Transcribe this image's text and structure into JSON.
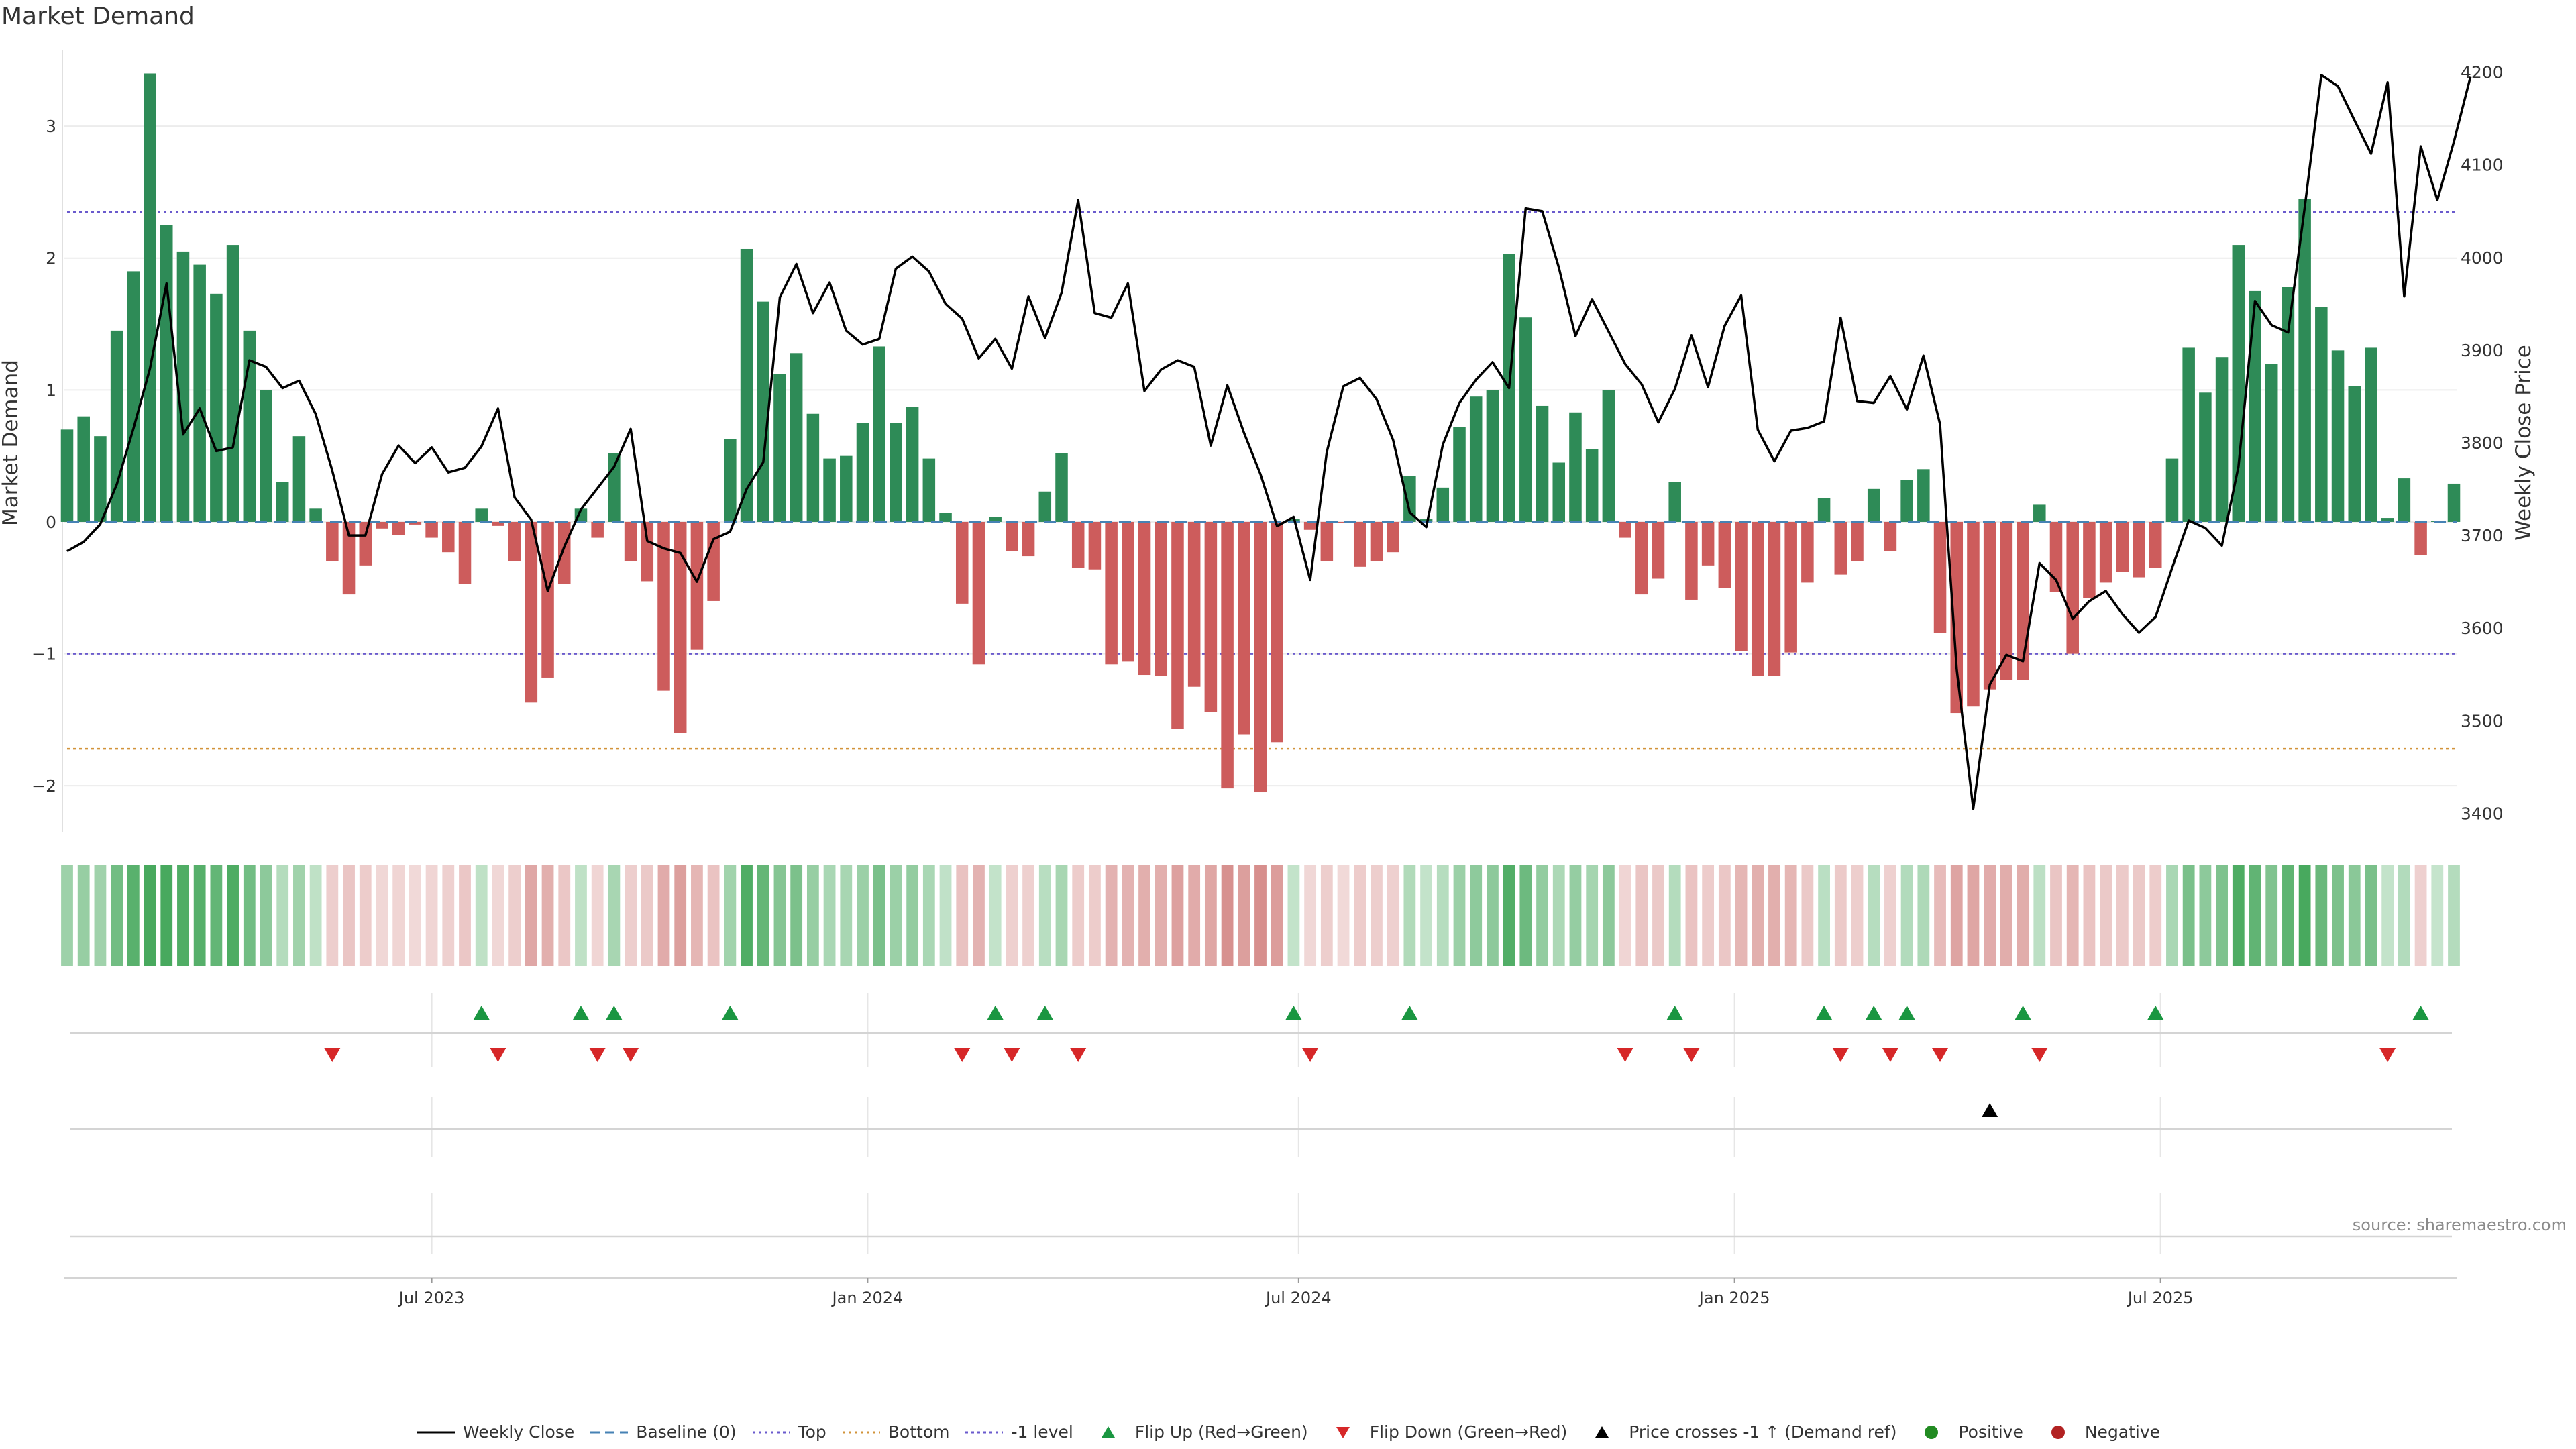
{
  "title": "Market Demand",
  "source": "source: sharemaestro.com",
  "colors": {
    "positive": "#2e8b57",
    "negative": "#cd5c5c",
    "price": "#000000",
    "baseline": "#4682b4",
    "top": "#6a5acd",
    "bottom": "#d2933a",
    "minus1": "#6a5acd",
    "flip_up": "#1a9641",
    "flip_down": "#d62728",
    "cross": "#000000",
    "positive_dot": "#228b22",
    "negative_dot": "#b22222"
  },
  "chart_data": {
    "type": "bar+line",
    "title": "Market Demand",
    "ylabel_left": "Market Demand",
    "ylabel_right": "Weekly Close Price",
    "ylim_left": [
      -2.35,
      3.55
    ],
    "ylim_right": [
      3380,
      4220
    ],
    "left_ticks": [
      "3",
      "2",
      "1",
      "0",
      "−1",
      "−2"
    ],
    "left_tick_values": [
      3,
      2,
      1,
      0,
      -1,
      -2
    ],
    "right_ticks": [
      "4200",
      "4100",
      "4000",
      "3900",
      "3800",
      "3700",
      "3600",
      "3500",
      "3400"
    ],
    "right_tick_values": [
      4200,
      4100,
      4000,
      3900,
      3800,
      3700,
      3600,
      3500,
      3400
    ],
    "x_ticks": [
      "Jul 2023",
      "Jan 2024",
      "Jul 2024",
      "Jan 2025",
      "Jul 2025"
    ],
    "x_tick_index": [
      22,
      48.3,
      74.3,
      100.6,
      126.3
    ],
    "reference_lines": {
      "top": 2.35,
      "bottom": -1.72,
      "minus1": -1.0,
      "baseline": 0
    },
    "demand": [
      0.7,
      0.8,
      0.65,
      1.45,
      1.9,
      3.4,
      2.25,
      2.05,
      1.95,
      1.73,
      2.1,
      1.45,
      1.0,
      0.3,
      0.65,
      0.1,
      -0.3,
      -0.55,
      -0.33,
      -0.05,
      -0.1,
      -0.02,
      -0.12,
      -0.23,
      -0.47,
      0.1,
      -0.03,
      -0.3,
      -1.37,
      -1.18,
      -0.47,
      0.1,
      -0.12,
      0.52,
      -0.3,
      -0.45,
      -1.28,
      -1.6,
      -0.97,
      -0.6,
      0.63,
      2.07,
      1.67,
      1.12,
      1.28,
      0.82,
      0.48,
      0.5,
      0.75,
      1.33,
      0.75,
      0.87,
      0.48,
      0.07,
      -0.62,
      -1.08,
      0.04,
      -0.22,
      -0.26,
      0.23,
      0.52,
      -0.35,
      -0.36,
      -1.08,
      -1.06,
      -1.16,
      -1.17,
      -1.57,
      -1.25,
      -1.44,
      -2.02,
      -1.61,
      -2.05,
      -1.67,
      0.02,
      -0.06,
      -0.3,
      -0.01,
      -0.34,
      -0.3,
      -0.23,
      0.35,
      0.02,
      0.26,
      0.72,
      0.95,
      1.0,
      2.03,
      1.55,
      0.88,
      0.45,
      0.83,
      0.55,
      1.0,
      -0.12,
      -0.55,
      -0.43,
      0.3,
      -0.59,
      -0.33,
      -0.5,
      -0.98,
      -1.17,
      -1.17,
      -0.99,
      -0.46,
      0.18,
      -0.4,
      -0.3,
      0.25,
      -0.22,
      0.32,
      0.4,
      -0.84,
      -1.45,
      -1.4,
      -1.27,
      -1.2,
      -1.2,
      0.13,
      -0.53,
      -1.0,
      -0.58,
      -0.46,
      -0.38,
      -0.42,
      -0.35,
      0.48,
      1.32,
      0.98,
      1.25,
      2.1,
      1.75,
      1.2,
      1.78,
      2.45,
      1.63,
      1.3,
      1.03,
      1.32,
      0.03,
      0.33,
      -0.25,
      0.01,
      0.29
    ],
    "weekly_close": [
      3683,
      3693,
      3712,
      3755,
      3815,
      3880,
      3972,
      3809,
      3837,
      3791,
      3795,
      3889,
      3882,
      3859,
      3867,
      3831,
      3770,
      3700,
      3700,
      3766,
      3797,
      3778,
      3795,
      3768,
      3773,
      3796,
      3837,
      3741,
      3717,
      3640,
      3688,
      3728,
      3751,
      3774,
      3815,
      3694,
      3686,
      3681,
      3650,
      3696,
      3704,
      3750,
      3779,
      3957,
      3993,
      3940,
      3973,
      3921,
      3906,
      3912,
      3988,
      4001,
      3985,
      3950,
      3934,
      3891,
      3912,
      3880,
      3958,
      3913,
      3962,
      4062,
      3940,
      3935,
      3972,
      3856,
      3879,
      3889,
      3882,
      3797,
      3862,
      3811,
      3766,
      3710,
      3720,
      3652,
      3790,
      3861,
      3870,
      3847,
      3803,
      3725,
      3709,
      3798,
      3843,
      3868,
      3887,
      3859,
      4053,
      4050,
      3989,
      3915,
      3955,
      3920,
      3885,
      3863,
      3822,
      3858,
      3916,
      3860,
      3926,
      3959,
      3814,
      3780,
      3813,
      3816,
      3823,
      3935,
      3845,
      3843,
      3872,
      3836,
      3894,
      3820,
      3556,
      3405,
      3539,
      3571,
      3564,
      3670,
      3652,
      3610,
      3629,
      3640,
      3615,
      3595,
      3612,
      3665,
      3716,
      3708,
      3689,
      3774,
      3953,
      3927,
      3919,
      4054,
      4197,
      4185,
      4148,
      4112,
      4189,
      3958,
      4120,
      4062,
      4125,
      4195
    ],
    "flip_up_index": [
      25,
      31,
      33,
      40,
      56,
      59,
      74,
      81,
      97,
      106,
      109,
      111,
      118,
      126,
      142
    ],
    "flip_down_index": [
      16,
      26,
      32,
      34,
      54,
      57,
      61,
      75,
      94,
      98,
      107,
      110,
      113,
      119,
      140
    ],
    "price_cross_index": [
      116
    ]
  },
  "legend": [
    {
      "label": "Weekly Close",
      "icon": "line-solid-icon",
      "color": "#000000"
    },
    {
      "label": "Baseline (0)",
      "icon": "line-dashed-icon",
      "color": "#4682b4"
    },
    {
      "label": "Top",
      "icon": "line-dotted-icon",
      "color": "#6a5acd"
    },
    {
      "label": "Bottom",
      "icon": "line-dotted-icon",
      "color": "#d2933a"
    },
    {
      "label": "-1 level",
      "icon": "line-dotted-icon",
      "color": "#6a5acd"
    },
    {
      "label": "Flip Up (Red→Green)",
      "icon": "triangle-up-icon",
      "color": "#1a9641"
    },
    {
      "label": "Flip Down (Green→Red)",
      "icon": "triangle-down-icon",
      "color": "#d62728"
    },
    {
      "label": "Price crosses -1 ↑ (Demand ref)",
      "icon": "triangle-up-icon",
      "color": "#000000"
    },
    {
      "label": "Positive",
      "icon": "circle-icon",
      "color": "#228b22"
    },
    {
      "label": "Negative",
      "icon": "circle-icon",
      "color": "#b22222"
    }
  ]
}
